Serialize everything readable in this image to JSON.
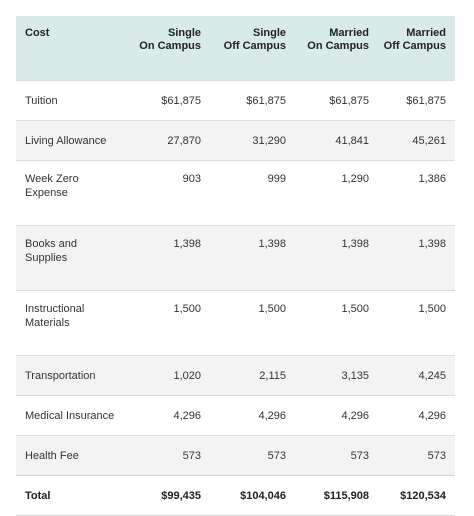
{
  "table": {
    "headers": [
      {
        "lines": [
          "Cost"
        ]
      },
      {
        "lines": [
          "Single",
          "On Campus"
        ]
      },
      {
        "lines": [
          "Single",
          "Off Campus"
        ]
      },
      {
        "lines": [
          "Married",
          "On Campus"
        ]
      },
      {
        "lines": [
          "Married",
          "Off Campus"
        ]
      }
    ],
    "rows": [
      {
        "label_lines": [
          "Tuition"
        ],
        "values": [
          "$61,875",
          "$61,875",
          "$61,875",
          "$61,875"
        ]
      },
      {
        "label_lines": [
          "Living Allowance"
        ],
        "values": [
          "27,870",
          "31,290",
          "41,841",
          "45,261"
        ]
      },
      {
        "label_lines": [
          "Week Zero",
          "Expense"
        ],
        "values": [
          "903",
          "999",
          "1,290",
          "1,386"
        ]
      },
      {
        "label_lines": [
          "Books and",
          "Supplies"
        ],
        "values": [
          "1,398",
          "1,398",
          "1,398",
          "1,398"
        ]
      },
      {
        "label_lines": [
          "Instructional",
          "Materials"
        ],
        "values": [
          "1,500",
          "1,500",
          "1,500",
          "1,500"
        ]
      },
      {
        "label_lines": [
          "Transportation"
        ],
        "values": [
          "1,020",
          "2,115",
          "3,135",
          "4,245"
        ]
      },
      {
        "label_lines": [
          "Medical Insurance"
        ],
        "values": [
          "4,296",
          "4,296",
          "4,296",
          "4,296"
        ]
      },
      {
        "label_lines": [
          "Health Fee"
        ],
        "values": [
          "573",
          "573",
          "573",
          "573"
        ]
      }
    ],
    "total": {
      "label": "Total",
      "values": [
        "$99,435",
        "$104,046",
        "$115,908",
        "$120,534"
      ]
    }
  },
  "colors": {
    "header_bg": "#d8ebe8",
    "row_alt_bg": "#f3f3f3",
    "row_bg": "#ffffff",
    "border": "#dcdcdc",
    "text": "#333333"
  }
}
